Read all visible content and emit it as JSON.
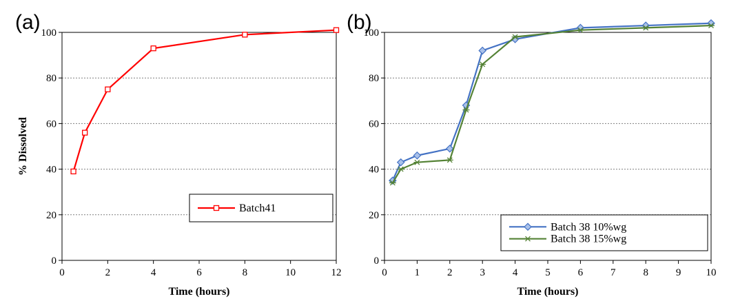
{
  "chart_data": [
    {
      "type": "line",
      "panel_label": "(a)",
      "xlabel": "Time (hours)",
      "ylabel": "% Dissolved",
      "xlim": [
        0,
        12
      ],
      "ylim": [
        0,
        100
      ],
      "xticks": [
        "0",
        "2",
        "4",
        "6",
        "8",
        "10",
        "12"
      ],
      "yticks": [
        "0",
        "20",
        "40",
        "60",
        "80",
        "100"
      ],
      "grid": "horizontal dotted",
      "legend_position": "lower-right",
      "series": [
        {
          "name": "Batch41",
          "color": "#ff0000",
          "marker": "square",
          "x": [
            0.5,
            1,
            2,
            4,
            8,
            12
          ],
          "y": [
            39,
            56,
            75,
            93,
            99,
            101
          ]
        }
      ]
    },
    {
      "type": "line",
      "panel_label": "(b)",
      "xlabel": "Time (hours)",
      "ylabel": "",
      "xlim": [
        0,
        10
      ],
      "ylim": [
        0,
        100
      ],
      "xticks": [
        "0",
        "1",
        "2",
        "3",
        "4",
        "5",
        "6",
        "7",
        "8",
        "9",
        "10"
      ],
      "yticks": [
        "0",
        "20",
        "40",
        "60",
        "80",
        "100"
      ],
      "grid": "horizontal dotted",
      "legend_position": "lower-right",
      "series": [
        {
          "name": "Batch 38 10%wg",
          "color": "#4472c4",
          "marker": "diamond",
          "x": [
            0.25,
            0.5,
            1,
            2,
            2.5,
            3,
            4,
            6,
            8,
            10
          ],
          "y": [
            35,
            43,
            46,
            49,
            68,
            92,
            97,
            102,
            103,
            104
          ]
        },
        {
          "name": "Batch 38 15%wg",
          "color": "#548235",
          "marker": "asterisk",
          "x": [
            0.25,
            0.5,
            1,
            2,
            2.5,
            3,
            4,
            6,
            8,
            10
          ],
          "y": [
            34,
            40,
            43,
            44,
            66,
            86,
            98,
            101,
            102,
            103
          ]
        }
      ]
    }
  ]
}
